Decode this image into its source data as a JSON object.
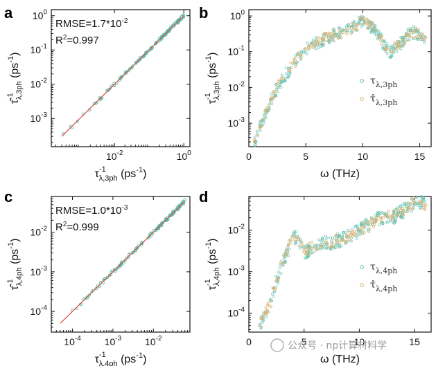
{
  "chart_data": [
    {
      "panel": "a",
      "type": "scatter",
      "xscale": "log",
      "yscale": "log",
      "xlim": [
        0.00015,
        1.5
      ],
      "ylim": [
        0.00015,
        1.5
      ],
      "xticks": [
        {
          "v": 0.01,
          "label": "10^-2"
        },
        {
          "v": 1,
          "label": "10^0"
        }
      ],
      "yticks": [
        {
          "v": 0.001,
          "label": "10^-3"
        },
        {
          "v": 0.01,
          "label": "10^-2"
        },
        {
          "v": 0.1,
          "label": "10^-1"
        },
        {
          "v": 1,
          "label": "10^0"
        }
      ],
      "xlabel": {
        "sym": "τ",
        "sup": "-1",
        "sub": "λ,3ph",
        "unit": " (ps",
        "unit_sup": "-1",
        "close": ")"
      },
      "ylabel": {
        "sym": "τ̂",
        "sup": "-1",
        "sub": "λ,3ph",
        "unit": " (ps",
        "unit_sup": "-1",
        "close": ")"
      },
      "annotations": {
        "rmse": "RMSE=1.7*10",
        "rmse_exp": "-2",
        "r2": "R",
        "r2_sup": "2",
        "r2_val": "=0.997"
      },
      "fit_line": {
        "from": 0.0003,
        "to": 1.0,
        "color": "#d94a3a"
      },
      "series": {
        "range": [
          0.0003,
          1.0
        ],
        "color": "#5fbfb0"
      }
    },
    {
      "panel": "b",
      "type": "scatter",
      "xscale": "linear",
      "yscale": "log",
      "xlim": [
        0,
        16
      ],
      "ylim": [
        0.00022,
        1.5
      ],
      "xticks": [
        {
          "v": 0,
          "label": "0"
        },
        {
          "v": 5,
          "label": "5"
        },
        {
          "v": 10,
          "label": "10"
        },
        {
          "v": 15,
          "label": "15"
        }
      ],
      "yticks": [
        {
          "v": 0.001,
          "label": "10^-3"
        },
        {
          "v": 0.01,
          "label": "10^-2"
        },
        {
          "v": 0.1,
          "label": "10^-1"
        },
        {
          "v": 1,
          "label": "10^0"
        }
      ],
      "xlabel": {
        "text": "ω (THz)"
      },
      "ylabel": {
        "sym": "τ",
        "sup": "-1",
        "sub": "λ,3ph",
        "unit": " (ps",
        "unit_sup": "-1",
        "close": ")"
      },
      "legend": [
        {
          "sym": "τ",
          "sub": "λ,3ph",
          "color": "#5fbfb0"
        },
        {
          "sym": "τ̂",
          "sub": "λ,3ph",
          "color": "#d8b070"
        }
      ],
      "series": [
        {
          "name": "τ_λ,3ph",
          "color": "#5fbfb0",
          "x": [
            0.5,
            1,
            1.5,
            2,
            2.5,
            3,
            3.5,
            4,
            4.5,
            5,
            5.5,
            6,
            6.5,
            7,
            7.5,
            8,
            8.5,
            9,
            9.5,
            10,
            10.5,
            11,
            11.5,
            12,
            12.5,
            13,
            13.5,
            14,
            14.5,
            15,
            15.5
          ],
          "y": [
            0.0003,
            0.0008,
            0.002,
            0.005,
            0.01,
            0.018,
            0.03,
            0.05,
            0.08,
            0.12,
            0.15,
            0.18,
            0.22,
            0.25,
            0.3,
            0.35,
            0.4,
            0.45,
            0.55,
            0.8,
            0.6,
            0.4,
            0.25,
            0.12,
            0.1,
            0.15,
            0.2,
            0.3,
            0.35,
            0.3,
            0.25
          ]
        },
        {
          "name": "τ̂_λ,3ph",
          "color": "#d8b070",
          "x": [
            0.5,
            1,
            1.5,
            2,
            2.5,
            3,
            3.5,
            4,
            4.5,
            5,
            5.5,
            6,
            6.5,
            7,
            7.5,
            8,
            8.5,
            9,
            9.5,
            10,
            10.5,
            11,
            11.5,
            12,
            12.5,
            13,
            13.5,
            14,
            14.5,
            15,
            15.5
          ],
          "y": [
            0.0003,
            0.0008,
            0.002,
            0.005,
            0.01,
            0.018,
            0.03,
            0.05,
            0.08,
            0.12,
            0.15,
            0.18,
            0.22,
            0.25,
            0.3,
            0.35,
            0.4,
            0.45,
            0.55,
            0.8,
            0.6,
            0.4,
            0.25,
            0.12,
            0.1,
            0.15,
            0.2,
            0.3,
            0.35,
            0.3,
            0.25
          ]
        }
      ]
    },
    {
      "panel": "c",
      "type": "scatter",
      "xscale": "log",
      "yscale": "log",
      "xlim": [
        3e-05,
        0.08
      ],
      "ylim": [
        3e-05,
        0.08
      ],
      "xticks": [
        {
          "v": 0.0001,
          "label": "10^-4"
        },
        {
          "v": 0.001,
          "label": "10^-3"
        },
        {
          "v": 0.01,
          "label": "10^-2"
        }
      ],
      "yticks": [
        {
          "v": 0.0001,
          "label": "10^-4"
        },
        {
          "v": 0.001,
          "label": "10^-3"
        },
        {
          "v": 0.01,
          "label": "10^-2"
        }
      ],
      "xlabel": {
        "sym": "τ",
        "sup": "-1",
        "sub": "λ,4ph",
        "unit": " (ps",
        "unit_sup": "-1",
        "close": ")"
      },
      "ylabel": {
        "sym": "τ̂",
        "sup": "-1",
        "sub": "λ,4ph",
        "unit": " (ps",
        "unit_sup": "-1",
        "close": ")"
      },
      "annotations": {
        "rmse": "RMSE=1.0*10",
        "rmse_exp": "-3",
        "r2": "R",
        "r2_sup": "2",
        "r2_val": "=0.999"
      },
      "fit_line": {
        "from": 5e-05,
        "to": 0.06,
        "color": "#d94a3a"
      },
      "series": {
        "range": [
          5e-05,
          0.06
        ],
        "color": "#5fbfb0"
      }
    },
    {
      "panel": "d",
      "type": "scatter",
      "xscale": "linear",
      "yscale": "log",
      "xlim": [
        0,
        16.5
      ],
      "ylim": [
        3.5e-05,
        0.065
      ],
      "xticks": [
        {
          "v": 0,
          "label": "0"
        },
        {
          "v": 5,
          "label": "5"
        },
        {
          "v": 10,
          "label": "10"
        },
        {
          "v": 15,
          "label": "15"
        }
      ],
      "yticks": [
        {
          "v": 0.0001,
          "label": "10^-4"
        },
        {
          "v": 0.001,
          "label": "10^-3"
        },
        {
          "v": 0.01,
          "label": "10^-2"
        }
      ],
      "xlabel": {
        "text": "ω (THz)"
      },
      "ylabel": {
        "sym": "τ",
        "sup": "-1",
        "sub": "λ,4ph",
        "unit": " (ps",
        "unit_sup": "-1",
        "close": ")"
      },
      "legend": [
        {
          "sym": "τ",
          "sub": "λ,4ph",
          "color": "#5fbfb0"
        },
        {
          "sym": "τ̂",
          "sub": "λ,4ph",
          "color": "#d8b070"
        }
      ],
      "series": [
        {
          "name": "τ_λ,4ph",
          "color": "#5fbfb0",
          "x": [
            1,
            1.5,
            2,
            2.5,
            3,
            3.5,
            4,
            4.5,
            5,
            5.5,
            6,
            6.5,
            7,
            7.5,
            8,
            8.5,
            9,
            9.5,
            10,
            10.5,
            11,
            11.5,
            12,
            12.5,
            13,
            13.5,
            14,
            14.5,
            15,
            15.5,
            16
          ],
          "y": [
            5e-05,
            0.0001,
            0.0002,
            0.0006,
            0.0015,
            0.003,
            0.007,
            0.006,
            0.003,
            0.0035,
            0.004,
            0.0045,
            0.005,
            0.005,
            0.0055,
            0.006,
            0.007,
            0.008,
            0.01,
            0.012,
            0.014,
            0.017,
            0.02,
            0.022,
            0.02,
            0.025,
            0.03,
            0.035,
            0.045,
            0.05,
            0.04
          ]
        },
        {
          "name": "τ̂_λ,4ph",
          "color": "#d8b070",
          "x": [
            1,
            1.5,
            2,
            2.5,
            3,
            3.5,
            4,
            4.5,
            5,
            5.5,
            6,
            6.5,
            7,
            7.5,
            8,
            8.5,
            9,
            9.5,
            10,
            10.5,
            11,
            11.5,
            12,
            12.5,
            13,
            13.5,
            14,
            14.5,
            15,
            15.5,
            16
          ],
          "y": [
            5e-05,
            0.0001,
            0.0002,
            0.0006,
            0.0015,
            0.003,
            0.007,
            0.006,
            0.003,
            0.0035,
            0.004,
            0.0045,
            0.005,
            0.005,
            0.0055,
            0.006,
            0.007,
            0.008,
            0.01,
            0.012,
            0.014,
            0.017,
            0.02,
            0.022,
            0.02,
            0.025,
            0.03,
            0.035,
            0.045,
            0.05,
            0.04
          ]
        }
      ]
    }
  ],
  "watermark": "公众号 · np计算材料学",
  "colors": {
    "teal": "#5fbfb0",
    "tan": "#d8b070",
    "fit": "#d94a3a",
    "axis": "#111111"
  }
}
